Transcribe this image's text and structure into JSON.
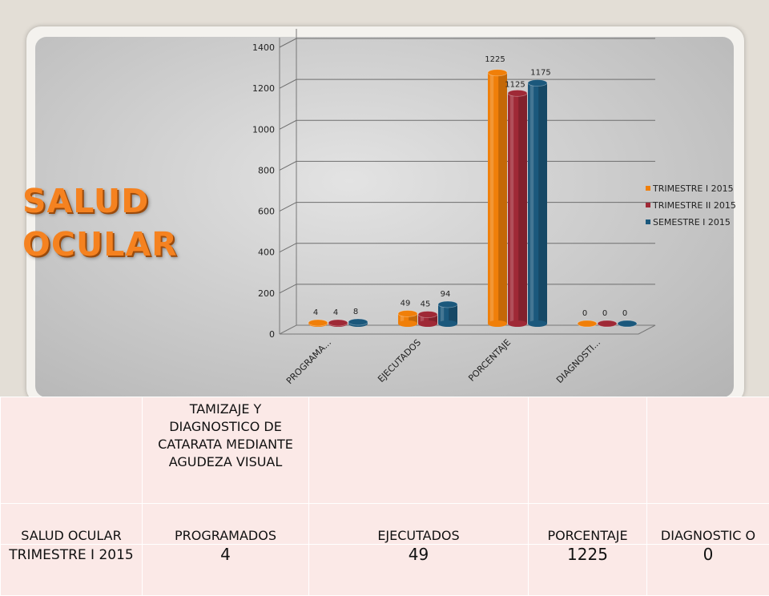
{
  "slide_title": [
    "SALUD",
    "OCULAR"
  ],
  "chart_data": {
    "type": "bar",
    "categories": [
      "PROGRAMA...",
      "EJECUTADOS",
      "PORCENTAJE",
      "DIAGNOSTI..."
    ],
    "series": [
      {
        "name": "TRIMESTRE I 2015",
        "values": [
          4,
          49,
          1225,
          0
        ],
        "color": "#f07f09"
      },
      {
        "name": "TRIMESTRE II 2015",
        "values": [
          4,
          45,
          1125,
          0
        ],
        "color": "#9f2936"
      },
      {
        "name": "SEMESTRE I 2015",
        "values": [
          8,
          94,
          1175,
          0
        ],
        "color": "#1b587c"
      }
    ],
    "ylim": [
      0,
      1400
    ],
    "yticks": [
      "0",
      "200",
      "400",
      "600",
      "800",
      "1000",
      "1200",
      "1400"
    ],
    "legend": "right",
    "grid": true
  },
  "table": {
    "header_title": "TAMIZAJE Y DIAGNOSTICO DE CATARATA MEDIANTE AGUDEZA VISUAL",
    "columns": [
      "SALUD OCULAR",
      "PROGRAMADOS",
      "EJECUTADOS",
      "PORCENTAJE",
      "DIAGNOSTIC O"
    ],
    "rows": [
      {
        "label": "TRIMESTRE I 2015",
        "values": [
          "4",
          "49",
          "1225",
          "0"
        ]
      }
    ]
  }
}
